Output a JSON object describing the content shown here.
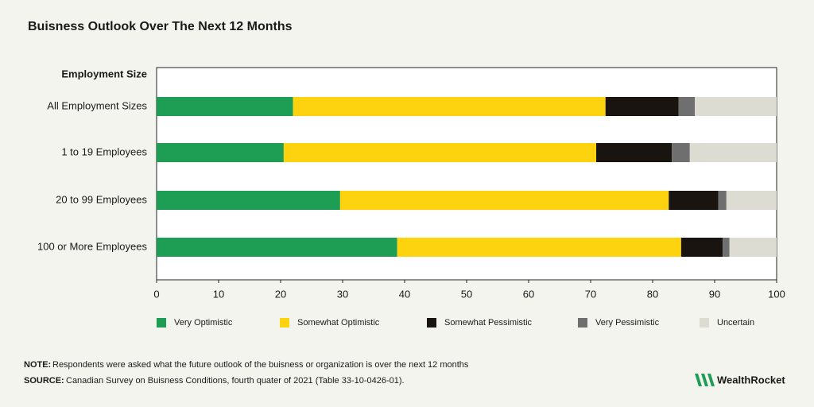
{
  "chart_data": {
    "type": "stacked-barh",
    "title": "Buisness Outlook Over The Next 12 Months",
    "y_label": "Employment Size",
    "categories": [
      "All Employment Sizes",
      "1 to 19 Employees",
      "20 to 99 Employees",
      "100 or More Employees"
    ],
    "series": [
      {
        "name": "Very Optimistic",
        "color": "#1e9e55",
        "values": [
          22,
          20.5,
          29.6,
          38.8
        ]
      },
      {
        "name": "Somewhat Optimistic",
        "color": "#fdd20e",
        "values": [
          50.4,
          50.4,
          53,
          45.8
        ]
      },
      {
        "name": "Somewhat Pessimistic",
        "color": "#1a1410",
        "values": [
          11.8,
          12.2,
          8,
          6.7
        ]
      },
      {
        "name": "Very Pessimistic",
        "color": "#6f6f6f",
        "values": [
          2.6,
          2.9,
          1.3,
          1.1
        ]
      },
      {
        "name": "Uncertain",
        "color": "#dcdcd3",
        "values": [
          13.2,
          14,
          8.1,
          7.6
        ]
      }
    ],
    "xlim": [
      0,
      100
    ],
    "xticks": [
      0,
      10,
      20,
      30,
      40,
      50,
      60,
      70,
      80,
      90,
      100
    ],
    "grid": false
  },
  "footer": {
    "note_label": "NOTE:",
    "note": "Respondents were asked what the future outlook of the buisness or organization is over the next 12 months",
    "source_label": "SOURCE:",
    "source": "Canadian Survey on Buisness Conditions, fourth quater of 2021 (Table 33-10-0426-01).",
    "brand": "WealthRocket"
  }
}
